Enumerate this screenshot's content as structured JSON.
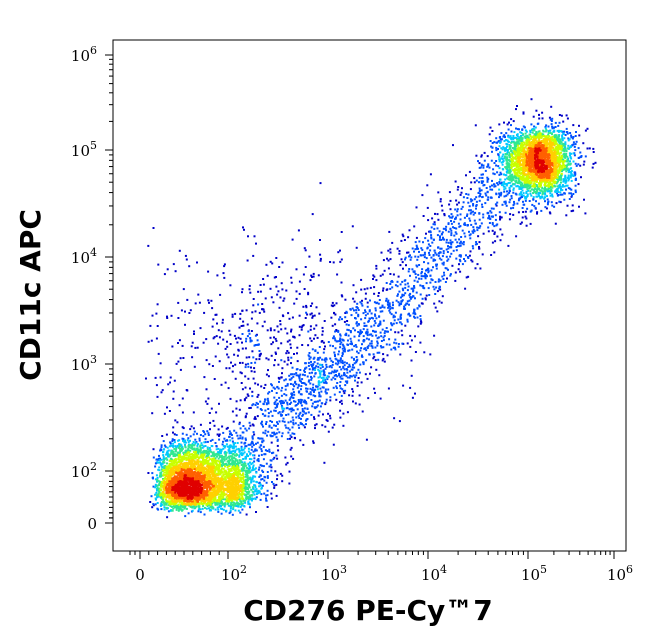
{
  "chart_data": {
    "type": "scatter",
    "style": "flow-cytometry density dot plot (pseudocolor)",
    "xlabel": "CD276 PE-Cy™7",
    "ylabel": "CD11c APC",
    "x_scale": "biexponential (linear near 0, log above ~100)",
    "y_scale": "biexponential (linear near 0, log above ~100)",
    "xlim": [
      -20,
      1000000
    ],
    "ylim": [
      -20,
      1000000
    ],
    "x_ticks": [
      {
        "value": 0,
        "base": "0",
        "exp": ""
      },
      {
        "value": 100,
        "base": "10",
        "exp": "2"
      },
      {
        "value": 1000,
        "base": "10",
        "exp": "3"
      },
      {
        "value": 10000,
        "base": "10",
        "exp": "4"
      },
      {
        "value": 100000,
        "base": "10",
        "exp": "5"
      },
      {
        "value": 1000000,
        "base": "10",
        "exp": "6"
      }
    ],
    "y_ticks": [
      {
        "value": 0,
        "base": "0",
        "exp": ""
      },
      {
        "value": 100,
        "base": "10",
        "exp": "2"
      },
      {
        "value": 1000,
        "base": "10",
        "exp": "3"
      },
      {
        "value": 10000,
        "base": "10",
        "exp": "4"
      },
      {
        "value": 100000,
        "base": "10",
        "exp": "5"
      },
      {
        "value": 1000000,
        "base": "10",
        "exp": "6"
      }
    ],
    "grid": false,
    "legend": "none",
    "density_colormap": [
      "#0000c8",
      "#0050ff",
      "#00c8ff",
      "#30e890",
      "#c8ff00",
      "#ffd000",
      "#ff6000",
      "#e00000"
    ],
    "populations": [
      {
        "center_x": 65,
        "center_y": 80,
        "spread_log": 0.22,
        "relative_count": 0.45,
        "description": "double-low cluster"
      },
      {
        "center_x": 130000,
        "center_y": 80000,
        "spread_log": 0.2,
        "relative_count": 0.3,
        "description": "double-high cluster"
      },
      {
        "from_x": 150,
        "from_y": 150,
        "to_x": 60000,
        "to_y": 50000,
        "relative_count": 0.18,
        "description": "diagonal bridge"
      },
      {
        "center_x": 300,
        "center_y": 1500,
        "spread_log": 0.55,
        "relative_count": 0.07,
        "description": "sparse scatter"
      }
    ]
  }
}
